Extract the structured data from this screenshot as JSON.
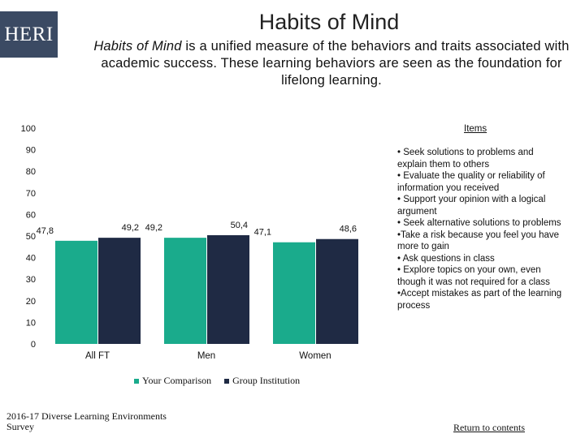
{
  "header": {
    "logo_text": "HERI",
    "title": "Habits of Mind",
    "subtitle_em": "Habits of Mind",
    "subtitle_rest": " is a unified measure of the behaviors and traits associated with academic success. These learning behaviors are seen as the foundation for lifelong learning."
  },
  "chart_data": {
    "type": "bar",
    "categories": [
      "All FT",
      "Men",
      "Women"
    ],
    "series": [
      {
        "name": "Your Comparison",
        "values": [
          47.8,
          49.2,
          47.1
        ],
        "color": "#1aab8c"
      },
      {
        "name": "Group Institution",
        "values": [
          49.2,
          50.4,
          48.6
        ],
        "color": "#1f2a44"
      }
    ],
    "data_labels": [
      [
        "47,8",
        "49,2",
        "47,1"
      ],
      [
        "49,2",
        "50,4",
        "48,6"
      ]
    ],
    "ylim": [
      0,
      100
    ],
    "yticks": [
      0,
      10,
      20,
      30,
      40,
      50,
      60,
      70,
      80,
      90,
      100
    ],
    "legend_position": "bottom",
    "grid": false
  },
  "items": {
    "heading": "Items",
    "list": [
      "• Seek solutions to problems and\n   explain them to others",
      "• Evaluate the quality or reliability of\n   information you received",
      "• Support your opinion with a logical\n   argument",
      "• Seek alternative solutions to problems",
      "•Take a risk because you feel you have more to gain",
      "• Ask questions in class",
      "• Explore topics on your own, even\n   though it was not required for a class",
      "•Accept mistakes as part of the learning process"
    ]
  },
  "footer": {
    "source": "2016-17 Diverse Learning Environments Survey",
    "link": "Return to contents"
  }
}
